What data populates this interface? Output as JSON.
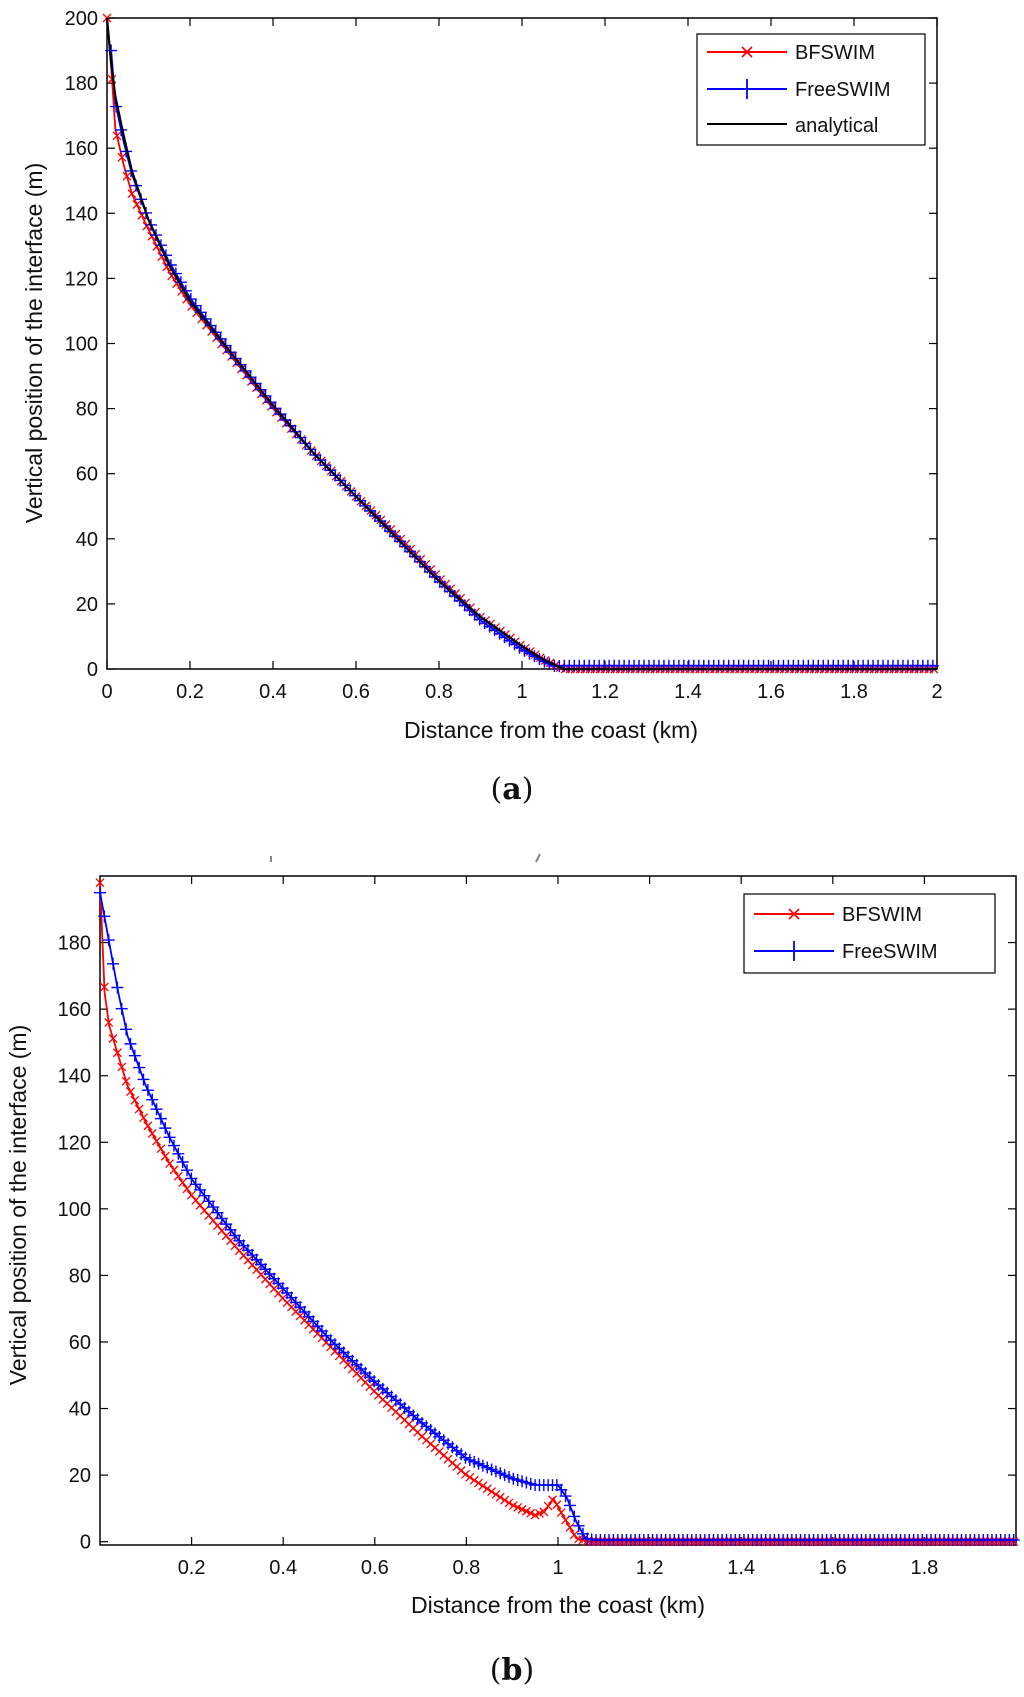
{
  "chart_data": [
    {
      "type": "line",
      "panel_label": [
        "(",
        "a",
        ")"
      ],
      "xlabel": "Distance from the coast (km)",
      "ylabel": "Vertical position of the interface (m)",
      "xlim": [
        0,
        2
      ],
      "ylim": [
        0,
        200
      ],
      "x_ticks": [
        0,
        0.2,
        0.4,
        0.6,
        0.8,
        1,
        1.2,
        1.4,
        1.6,
        1.8,
        2
      ],
      "x_tick_labels": [
        "0",
        "0.2",
        "0.4",
        "0.6",
        "0.8",
        "1",
        "1.2",
        "1.4",
        "1.6",
        "1.8",
        "2"
      ],
      "y_ticks": [
        0,
        20,
        40,
        60,
        80,
        100,
        120,
        140,
        160,
        180,
        200
      ],
      "y_tick_labels": [
        "0",
        "20",
        "40",
        "60",
        "80",
        "100",
        "120",
        "140",
        "160",
        "180",
        "200"
      ],
      "legend_position": "top-right",
      "grid": false,
      "series": [
        {
          "name": "BFSWIM",
          "color": "#ff0000",
          "marker": "x",
          "points": [
            [
              0.0,
              200
            ],
            [
              0.01,
              185
            ],
            [
              0.02,
              166
            ],
            [
              0.04,
              155
            ],
            [
              0.06,
              146
            ],
            [
              0.1,
              135
            ],
            [
              0.15,
              122
            ],
            [
              0.2,
              112
            ],
            [
              0.3,
              96
            ],
            [
              0.4,
              80
            ],
            [
              0.5,
              66
            ],
            [
              0.6,
              53
            ],
            [
              0.7,
              41
            ],
            [
              0.8,
              28
            ],
            [
              0.9,
              16
            ],
            [
              1.0,
              7
            ],
            [
              1.05,
              3
            ],
            [
              1.09,
              0.5
            ],
            [
              1.1,
              0
            ],
            [
              2.0,
              0
            ]
          ]
        },
        {
          "name": "FreeSWIM",
          "color": "#0000ff",
          "marker": "+",
          "points": [
            [
              0.01,
              190
            ],
            [
              0.02,
              174
            ],
            [
              0.04,
              162
            ],
            [
              0.06,
              152
            ],
            [
              0.1,
              138
            ],
            [
              0.15,
              125
            ],
            [
              0.2,
              114
            ],
            [
              0.3,
              97
            ],
            [
              0.4,
              81
            ],
            [
              0.5,
              66
            ],
            [
              0.6,
              53
            ],
            [
              0.7,
              40
            ],
            [
              0.8,
              27
            ],
            [
              0.9,
              15
            ],
            [
              1.0,
              6
            ],
            [
              1.05,
              2.5
            ],
            [
              1.08,
              0.8
            ],
            [
              1.1,
              1
            ],
            [
              2.0,
              1
            ]
          ]
        },
        {
          "name": "analytical",
          "color": "#000000",
          "marker": "none",
          "points": [
            [
              0.0,
              200
            ],
            [
              0.01,
              186
            ],
            [
              0.02,
              176
            ],
            [
              0.04,
              164
            ],
            [
              0.06,
              153
            ],
            [
              0.1,
              138
            ],
            [
              0.15,
              124
            ],
            [
              0.2,
              113
            ],
            [
              0.3,
              97
            ],
            [
              0.4,
              81
            ],
            [
              0.5,
              66
            ],
            [
              0.6,
              53
            ],
            [
              0.7,
              40
            ],
            [
              0.8,
              27
            ],
            [
              0.9,
              16
            ],
            [
              1.0,
              7
            ],
            [
              1.05,
              3
            ],
            [
              1.09,
              0.6
            ],
            [
              1.1,
              0
            ],
            [
              2.0,
              0
            ]
          ]
        }
      ]
    },
    {
      "type": "line",
      "panel_label": [
        "(",
        "b",
        ")"
      ],
      "xlabel": "Distance from the coast (km)",
      "ylabel": "Vertical position of the interface (m)",
      "xlim": [
        0,
        2
      ],
      "ylim": [
        -1,
        200
      ],
      "x_ticks": [
        0.2,
        0.4,
        0.6,
        0.8,
        1,
        1.2,
        1.4,
        1.6,
        1.8
      ],
      "x_tick_labels": [
        "0.2",
        "0.4",
        "0.6",
        "0.8",
        "1",
        "1.2",
        "1.4",
        "1.6",
        "1.8"
      ],
      "y_ticks": [
        0,
        20,
        40,
        60,
        80,
        100,
        120,
        140,
        160,
        180
      ],
      "y_tick_labels": [
        "0",
        "20",
        "40",
        "60",
        "80",
        "100",
        "120",
        "140",
        "160",
        "180"
      ],
      "legend_position": "top-right",
      "grid": false,
      "series": [
        {
          "name": "BFSWIM",
          "color": "#ff0000",
          "marker": "x",
          "points": [
            [
              0.0,
              198
            ],
            [
              0.01,
              165
            ],
            [
              0.02,
              155
            ],
            [
              0.04,
              146
            ],
            [
              0.06,
              137
            ],
            [
              0.1,
              126
            ],
            [
              0.15,
              114
            ],
            [
              0.2,
              104
            ],
            [
              0.3,
              88
            ],
            [
              0.4,
              73
            ],
            [
              0.5,
              59
            ],
            [
              0.6,
              45
            ],
            [
              0.7,
              32
            ],
            [
              0.8,
              20
            ],
            [
              0.9,
              11
            ],
            [
              0.95,
              8
            ],
            [
              0.97,
              9
            ],
            [
              0.99,
              13
            ],
            [
              1.01,
              8
            ],
            [
              1.04,
              1
            ],
            [
              1.07,
              0
            ],
            [
              2.0,
              0
            ]
          ]
        },
        {
          "name": "FreeSWIM",
          "color": "#0000ff",
          "marker": "+",
          "points": [
            [
              0.0,
              195
            ],
            [
              0.02,
              180
            ],
            [
              0.04,
              165
            ],
            [
              0.06,
              152
            ],
            [
              0.1,
              137
            ],
            [
              0.15,
              122
            ],
            [
              0.2,
              109
            ],
            [
              0.3,
              91
            ],
            [
              0.4,
              76
            ],
            [
              0.5,
              61
            ],
            [
              0.6,
              48
            ],
            [
              0.7,
              36
            ],
            [
              0.8,
              25
            ],
            [
              0.9,
              19
            ],
            [
              0.95,
              17
            ],
            [
              1.0,
              17
            ],
            [
              1.02,
              13
            ],
            [
              1.04,
              6
            ],
            [
              1.06,
              1
            ],
            [
              1.08,
              0.5
            ],
            [
              2.0,
              0.5
            ]
          ]
        }
      ]
    }
  ]
}
